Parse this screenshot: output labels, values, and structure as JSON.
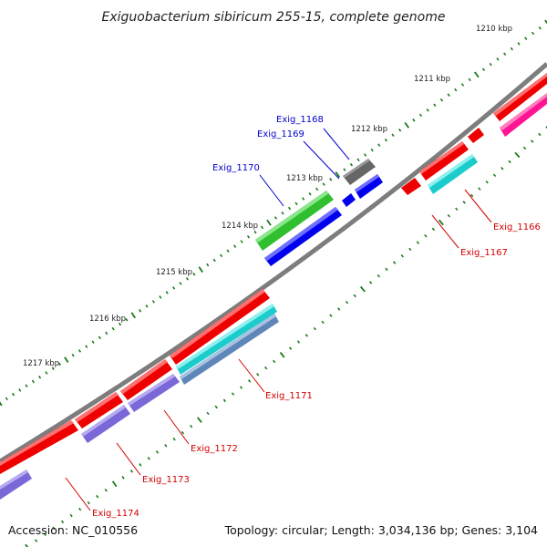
{
  "title": "Exiguobacterium sibiricum 255-15, complete genome",
  "accession": "Accession: NC_010556",
  "summary": "Topology: circular; Length: 3,034,136 bp; Genes: 3,104",
  "colors": {
    "backbone": "#808080",
    "tick": "#1a7a1a",
    "red": "#ee0000",
    "magenta": "#ff1493",
    "green": "#33cc33",
    "blue": "#0000ee",
    "cyan": "#1ccccc",
    "steel": "#5f86b8",
    "purple": "#7b68d8",
    "gray": "#6b6b6b",
    "label_red": "#d40000",
    "label_blue": "#0000cc"
  },
  "kbp_ticks": [
    {
      "label": "1210 kbp"
    },
    {
      "label": "1211 kbp"
    },
    {
      "label": "1212 kbp"
    },
    {
      "label": "1213 kbp"
    },
    {
      "label": "1214 kbp"
    },
    {
      "label": "1215 kbp"
    },
    {
      "label": "1216 kbp"
    },
    {
      "label": "1217 kbp"
    }
  ],
  "genes": [
    {
      "name": "Exig_1166",
      "color": "red"
    },
    {
      "name": "Exig_1167",
      "color": "red"
    },
    {
      "name": "Exig_1168",
      "color": "blue"
    },
    {
      "name": "Exig_1169",
      "color": "blue"
    },
    {
      "name": "Exig_1170",
      "color": "blue"
    },
    {
      "name": "Exig_1171",
      "color": "red"
    },
    {
      "name": "Exig_1172",
      "color": "red"
    },
    {
      "name": "Exig_1173",
      "color": "red"
    },
    {
      "name": "Exig_1174",
      "color": "red"
    }
  ]
}
